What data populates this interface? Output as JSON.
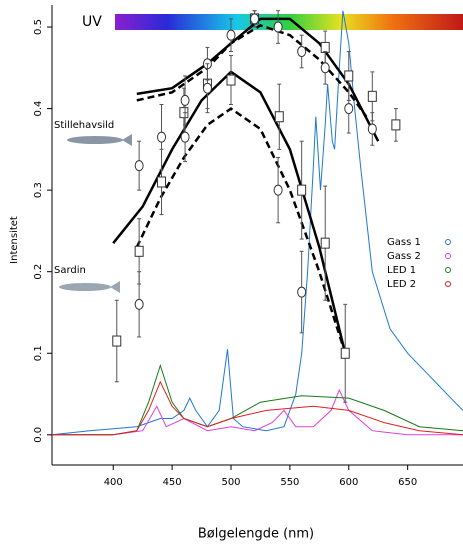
{
  "chart_data": {
    "type": "line",
    "uv_label": "UV",
    "xlabel": "Bølgelengde (nm)",
    "ylabel": "Intensitet",
    "annotations": [
      "Stillehavsild",
      "Sardin"
    ],
    "xlim": [
      348,
      697
    ],
    "ylim": [
      -0.037,
      0.527
    ],
    "xticks": [
      400,
      450,
      500,
      550,
      600,
      650
    ],
    "yticks": [
      {
        "value": 0,
        "label": "0.0"
      },
      0.1,
      0.2,
      0.3,
      0.4,
      0.5
    ],
    "series": [
      {
        "name": "Gass 1",
        "color": "#1f78d1",
        "x": [
          348,
          380,
          420,
          440,
          450,
          460,
          465,
          470,
          480,
          490,
          497,
          502,
          510,
          530,
          545,
          555,
          560,
          565,
          570,
          572,
          576,
          580,
          582,
          586,
          588,
          592,
          595,
          600,
          605,
          610,
          620,
          635,
          650,
          670,
          690,
          697
        ],
        "values": [
          0,
          0.005,
          0.01,
          0.02,
          0.02,
          0.03,
          0.045,
          0.03,
          0.01,
          0.03,
          0.105,
          0.02,
          0.01,
          0.005,
          0.01,
          0.05,
          0.1,
          0.2,
          0.33,
          0.39,
          0.3,
          0.38,
          0.43,
          0.36,
          0.35,
          0.45,
          0.52,
          0.48,
          0.4,
          0.33,
          0.2,
          0.13,
          0.1,
          0.07,
          0.04,
          0.03
        ]
      },
      {
        "name": "Gass 2",
        "color": "#dd3fdd",
        "x": [
          348,
          400,
          425,
          437,
          445,
          460,
          480,
          500,
          520,
          535,
          545,
          555,
          570,
          585,
          592,
          600,
          620,
          650,
          697
        ],
        "values": [
          0,
          0,
          0.005,
          0.035,
          0.01,
          0.02,
          0.005,
          0.01,
          0.005,
          0.015,
          0.03,
          0.01,
          0.01,
          0.03,
          0.055,
          0.03,
          0.005,
          0,
          0
        ]
      },
      {
        "name": "LED 1",
        "color": "#1a7a1a",
        "x": [
          348,
          400,
          420,
          430,
          440,
          450,
          460,
          480,
          500,
          525,
          560,
          600,
          630,
          660,
          697
        ],
        "values": [
          0,
          0,
          0.005,
          0.04,
          0.085,
          0.04,
          0.02,
          0.01,
          0.02,
          0.04,
          0.048,
          0.045,
          0.03,
          0.01,
          0.005
        ]
      },
      {
        "name": "LED 2",
        "color": "#e02020",
        "x": [
          348,
          400,
          420,
          430,
          440,
          450,
          460,
          480,
          500,
          530,
          570,
          600,
          630,
          660,
          697
        ],
        "values": [
          0,
          0,
          0.005,
          0.03,
          0.065,
          0.035,
          0.02,
          0.01,
          0.02,
          0.03,
          0.035,
          0.03,
          0.015,
          0.005,
          0
        ]
      }
    ],
    "fits": [
      {
        "dashed": false,
        "x": [
          420,
          450,
          480,
          500,
          525,
          550,
          575,
          600,
          625
        ],
        "values": [
          0.418,
          0.425,
          0.455,
          0.48,
          0.51,
          0.51,
          0.48,
          0.43,
          0.36
        ]
      },
      {
        "dashed": true,
        "x": [
          420,
          450,
          480,
          500,
          525,
          550,
          575,
          600,
          615
        ],
        "values": [
          0.41,
          0.42,
          0.45,
          0.48,
          0.502,
          0.49,
          0.46,
          0.42,
          0.39
        ]
      },
      {
        "dashed": false,
        "x": [
          400,
          425,
          450,
          475,
          500,
          525,
          550,
          575,
          597
        ],
        "values": [
          0.235,
          0.28,
          0.35,
          0.41,
          0.445,
          0.42,
          0.35,
          0.23,
          0.1
        ]
      },
      {
        "dashed": true,
        "x": [
          420,
          440,
          460,
          480,
          500,
          525,
          550,
          575,
          597
        ],
        "values": [
          0.23,
          0.29,
          0.34,
          0.38,
          0.4,
          0.375,
          0.3,
          0.2,
          0.1
        ]
      }
    ],
    "points": [
      {
        "marker": "square",
        "x": [
          403,
          422,
          441,
          460,
          480,
          500,
          520,
          541,
          560,
          580,
          597,
          580,
          600,
          620,
          640
        ],
        "values": [
          0.115,
          0.225,
          0.31,
          0.395,
          0.43,
          0.435,
          0.51,
          0.39,
          0.3,
          0.235,
          0.1,
          0.475,
          0.44,
          0.415,
          0.38
        ],
        "errors": [
          0.05,
          0.04,
          0.04,
          0.03,
          0.03,
          0.03,
          0.01,
          0.04,
          0.06,
          0.07,
          0.06,
          0.02,
          0.03,
          0.03,
          0.02
        ]
      },
      {
        "marker": "circle",
        "x": [
          422,
          422,
          441,
          461,
          461,
          480,
          480,
          500,
          520,
          540,
          540,
          560,
          560,
          580,
          600,
          620
        ],
        "values": [
          0.16,
          0.33,
          0.365,
          0.41,
          0.365,
          0.455,
          0.425,
          0.49,
          0.51,
          0.5,
          0.3,
          0.175,
          0.47,
          0.45,
          0.4,
          0.375
        ],
        "errors": [
          0.04,
          0.03,
          0.04,
          0.03,
          0.03,
          0.02,
          0.03,
          0.02,
          0.01,
          0.02,
          0.04,
          0.05,
          0.02,
          0.02,
          0.03,
          0.02
        ]
      }
    ]
  }
}
